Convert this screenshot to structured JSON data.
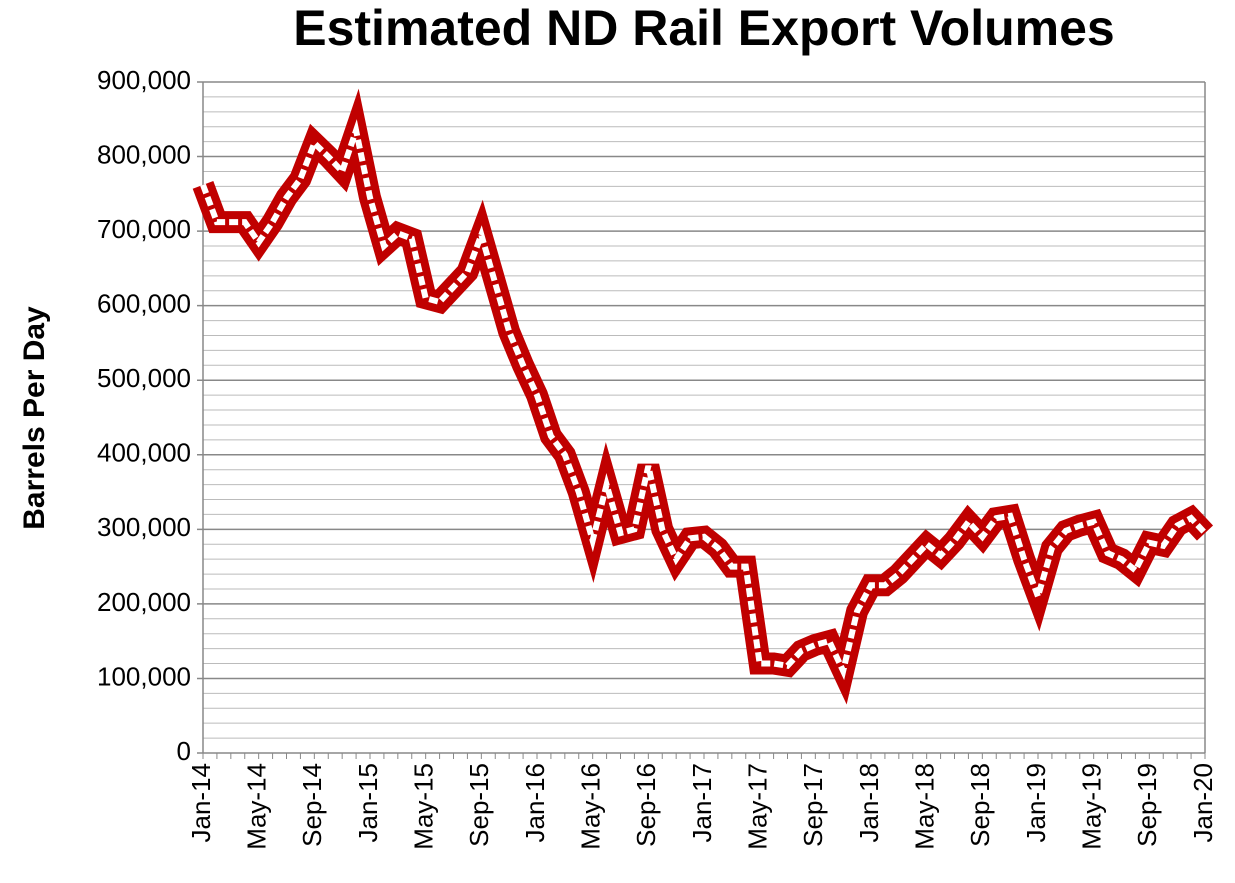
{
  "chart_data": {
    "type": "line",
    "title": "Estimated ND Rail Export Volumes",
    "y_label": "Barrels Per Day",
    "categories": [
      "Jan-14",
      null,
      null,
      null,
      "May-14",
      null,
      null,
      null,
      "Sep-14",
      null,
      null,
      null,
      "Jan-15",
      null,
      null,
      null,
      "May-15",
      null,
      null,
      null,
      "Sep-15",
      null,
      null,
      null,
      "Jan-16",
      null,
      null,
      null,
      "May-16",
      null,
      null,
      null,
      "Sep-16",
      null,
      null,
      null,
      "Jan-17",
      null,
      null,
      null,
      "May-17",
      null,
      null,
      null,
      "Sep-17",
      null,
      null,
      null,
      "Jan-18",
      null,
      null,
      null,
      "May-18",
      null,
      null,
      null,
      "Sep-18",
      null,
      null,
      null,
      "Jan-19",
      null,
      null,
      null,
      "May-19",
      null,
      null,
      null,
      "Sep-19",
      null,
      null,
      null,
      "Jan-20"
    ],
    "series": [
      {
        "name": "Barrels Per Day",
        "color": "#c00000",
        "values": [
          762000,
          712000,
          712000,
          712000,
          685000,
          712000,
          745000,
          770000,
          818000,
          800000,
          780000,
          835000,
          745000,
          680000,
          697000,
          690000,
          610000,
          605000,
          625000,
          645000,
          695000,
          630000,
          565000,
          520000,
          480000,
          425000,
          400000,
          350000,
          285000,
          360000,
          295000,
          300000,
          385000,
          300000,
          260000,
          288000,
          290000,
          275000,
          250000,
          250000,
          120000,
          120000,
          117000,
          137000,
          145000,
          150000,
          110000,
          190000,
          225000,
          225000,
          240000,
          260000,
          280000,
          265000,
          285000,
          310000,
          290000,
          315000,
          318000,
          260000,
          210000,
          275000,
          298000,
          305000,
          310000,
          268000,
          260000,
          245000,
          282000,
          278000,
          305000,
          315000,
          295000
        ]
      }
    ],
    "ylim": [
      0,
      900000
    ],
    "yticks": [
      0,
      {
        "value": 100000,
        "label": "100,000"
      },
      {
        "value": 200000,
        "label": "200,000"
      },
      {
        "value": 300000,
        "label": "300,000"
      },
      {
        "value": 400000,
        "label": "400,000"
      },
      {
        "value": 500000,
        "label": "500,000"
      },
      {
        "value": 600000,
        "label": "600,000"
      },
      {
        "value": 700000,
        "label": "700,000"
      },
      {
        "value": 800000,
        "label": "800,000"
      },
      {
        "value": 900000,
        "label": "900,000"
      }
    ],
    "grid": true,
    "minor_grid_divisions": 5
  }
}
